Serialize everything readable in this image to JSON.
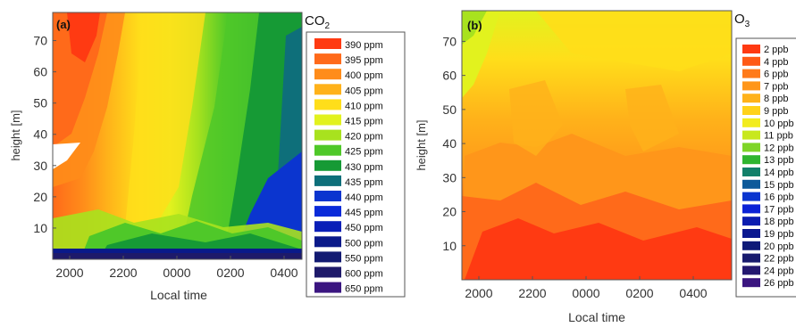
{
  "chart_data": [
    {
      "type": "heatmap",
      "panel_label": "(a)",
      "title_main": "CO",
      "title_sub": "2",
      "xlabel": "Local time",
      "ylabel": "height [m]",
      "x_ticks": [
        "2000",
        "2200",
        "0000",
        "0200",
        "0400"
      ],
      "y_ticks": [
        "10",
        "20",
        "30",
        "40",
        "50",
        "60",
        "70"
      ],
      "ylim": [
        0,
        79
      ],
      "legend_position": "right",
      "legend": [
        {
          "label": "390 ppm",
          "color": "#ff3a12"
        },
        {
          "label": "395 ppm",
          "color": "#ff6a1a"
        },
        {
          "label": "400 ppm",
          "color": "#ff8c1a"
        },
        {
          "label": "405 ppm",
          "color": "#ffb21a"
        },
        {
          "label": "410 ppm",
          "color": "#ffde1a"
        },
        {
          "label": "415 ppm",
          "color": "#e2f21e"
        },
        {
          "label": "420 ppm",
          "color": "#a8e21e"
        },
        {
          "label": "425 ppm",
          "color": "#4fc829"
        },
        {
          "label": "430 ppm",
          "color": "#169a35"
        },
        {
          "label": "435 ppm",
          "color": "#0e6f7a"
        },
        {
          "label": "440 ppm",
          "color": "#0b35cf"
        },
        {
          "label": "445 ppm",
          "color": "#0a2bd9"
        },
        {
          "label": "450 ppm",
          "color": "#0a1fb8"
        },
        {
          "label": "500 ppm",
          "color": "#0a1a8a"
        },
        {
          "label": "550 ppm",
          "color": "#121a72"
        },
        {
          "label": "600 ppm",
          "color": "#1e1a6a"
        },
        {
          "label": "650 ppm",
          "color": "#3a1580"
        }
      ]
    },
    {
      "type": "heatmap",
      "panel_label": "(b)",
      "title_main": "O",
      "title_sub": "3",
      "xlabel": "Local time",
      "ylabel": "height [m]",
      "x_ticks": [
        "2000",
        "2200",
        "0000",
        "0200",
        "0400"
      ],
      "y_ticks": [
        "10",
        "20",
        "30",
        "40",
        "50",
        "60",
        "70"
      ],
      "ylim": [
        0,
        79
      ],
      "legend_position": "right",
      "legend": [
        {
          "label": "2 ppb",
          "color": "#ff3a12"
        },
        {
          "label": "4 ppb",
          "color": "#ff5a16"
        },
        {
          "label": "6 ppb",
          "color": "#ff7a1a"
        },
        {
          "label": "7 ppb",
          "color": "#ff961a"
        },
        {
          "label": "8 ppb",
          "color": "#ffb21a"
        },
        {
          "label": "9 ppb",
          "color": "#ffd21a"
        },
        {
          "label": "10 ppb",
          "color": "#f2ec1e"
        },
        {
          "label": "11 ppb",
          "color": "#c8e81e"
        },
        {
          "label": "12 ppb",
          "color": "#7fd528"
        },
        {
          "label": "13 ppb",
          "color": "#2fb52f"
        },
        {
          "label": "14 ppb",
          "color": "#12806a"
        },
        {
          "label": "15 ppb",
          "color": "#0e5a9a"
        },
        {
          "label": "16 ppb",
          "color": "#0a35cf"
        },
        {
          "label": "17 ppb",
          "color": "#0a22d6"
        },
        {
          "label": "18 ppb",
          "color": "#0a1cb0"
        },
        {
          "label": "19 ppb",
          "color": "#0a1890"
        },
        {
          "label": "20 ppb",
          "color": "#0e1a78"
        },
        {
          "label": "22 ppb",
          "color": "#181a6e"
        },
        {
          "label": "24 ppb",
          "color": "#241870"
        },
        {
          "label": "26 ppb",
          "color": "#3a1580"
        }
      ]
    }
  ]
}
